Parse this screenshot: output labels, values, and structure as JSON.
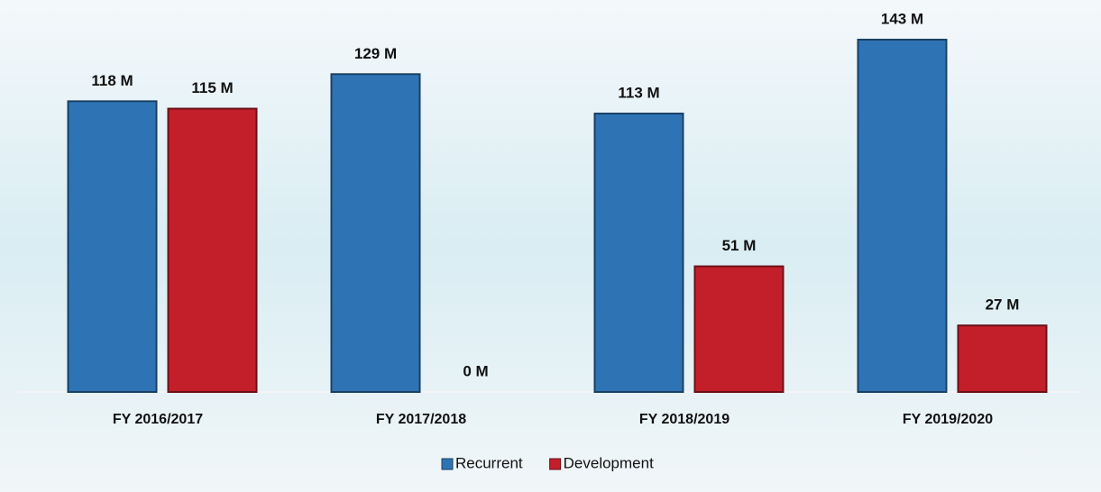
{
  "chart_data": {
    "type": "bar",
    "categories": [
      "FY 2016/2017",
      "FY 2017/2018",
      "FY 2018/2019",
      "FY 2019/2020"
    ],
    "series": [
      {
        "name": "Recurrent",
        "color": "#2e74b5",
        "values": [
          118,
          129,
          113,
          143
        ],
        "value_labels": [
          "118 M",
          "129 M",
          "113 M",
          "143 M"
        ]
      },
      {
        "name": "Development",
        "color": "#c21f2b",
        "values": [
          115,
          0,
          51,
          27
        ],
        "value_labels": [
          "115 M",
          "0 M",
          "51 M",
          "27 M"
        ]
      }
    ],
    "legend": "bottom"
  }
}
